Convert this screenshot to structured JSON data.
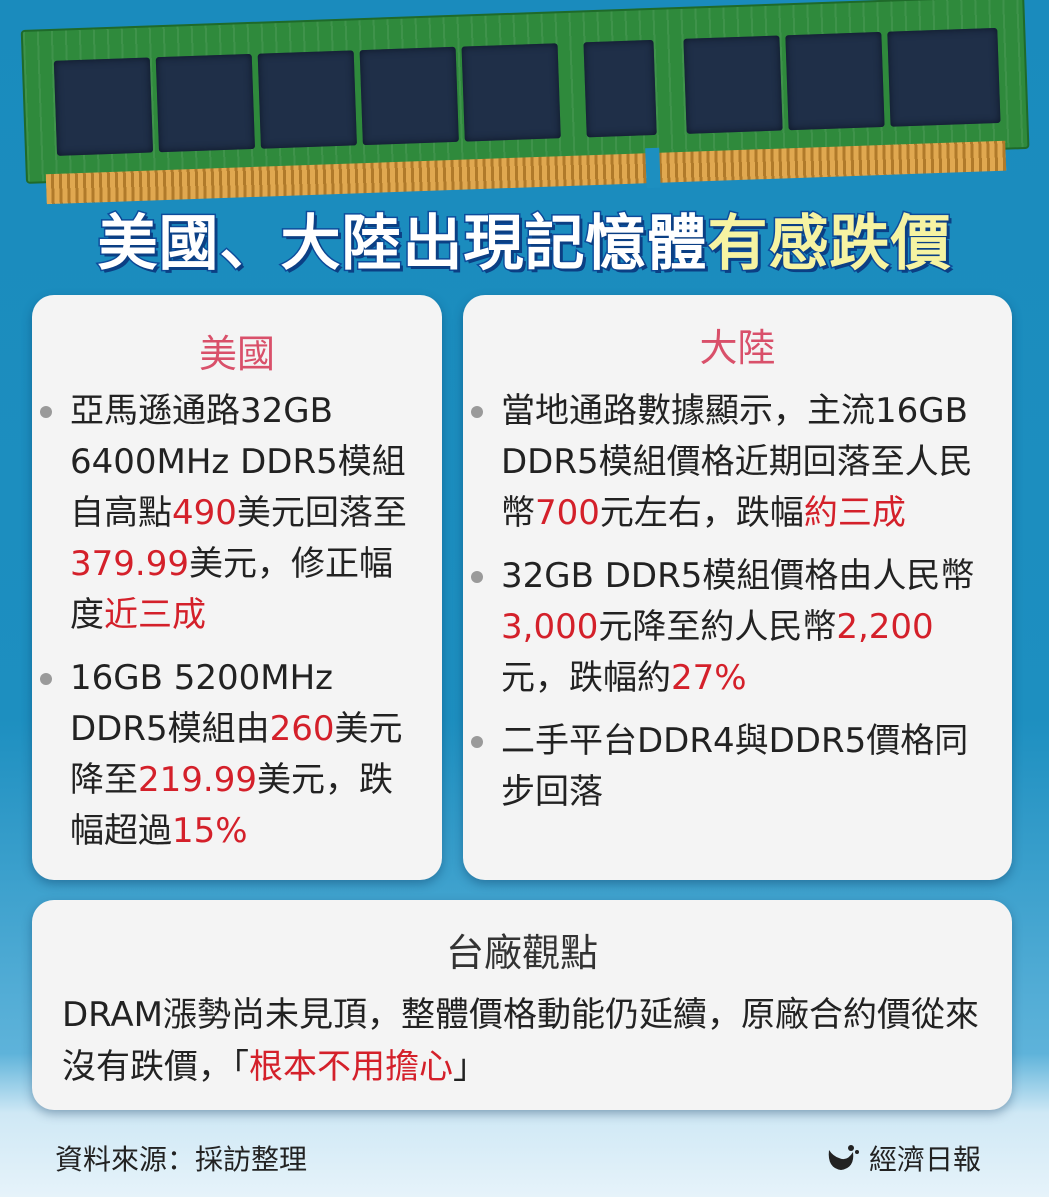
{
  "title": {
    "main": "美國、大陸出現記憶體",
    "highlight": "有感跌價"
  },
  "us": {
    "heading": "美國",
    "bullets": [
      [
        {
          "t": "亞馬遜通路32GB 6400MHz DDR5模組自高點"
        },
        {
          "t": "490",
          "hl": true
        },
        {
          "t": "美元回落至"
        },
        {
          "t": "379.99",
          "hl": true
        },
        {
          "t": "美元，修正幅度"
        },
        {
          "t": "近三成",
          "hl": true
        }
      ],
      [
        {
          "t": "16GB 5200MHz DDR5模組由"
        },
        {
          "t": "260",
          "hl": true
        },
        {
          "t": "美元降至"
        },
        {
          "t": "219.99",
          "hl": true
        },
        {
          "t": "美元，跌幅超過"
        },
        {
          "t": "15%",
          "hl": true
        }
      ]
    ]
  },
  "cn": {
    "heading": "大陸",
    "bullets": [
      [
        {
          "t": "當地通路數據顯示，主流16GB DDR5模組價格近期回落至人民幣"
        },
        {
          "t": "700",
          "hl": true
        },
        {
          "t": "元左右，跌幅"
        },
        {
          "t": "約三成",
          "hl": true
        }
      ],
      [
        {
          "t": "32GB DDR5模組價格由人民幣"
        },
        {
          "t": "3,000",
          "hl": true
        },
        {
          "t": "元降至約人民幣"
        },
        {
          "t": "2,200",
          "hl": true
        },
        {
          "t": "元，跌幅約"
        },
        {
          "t": "27%",
          "hl": true
        }
      ],
      [
        {
          "t": "二手平台DDR4與DDR5價格同步回落"
        }
      ]
    ]
  },
  "tw": {
    "heading": "台廠觀點",
    "text": [
      {
        "t": "DRAM漲勢尚未見頂，整體價格動能仍延續，原廠合約價從來沒有跌價，「"
      },
      {
        "t": "根本不用擔心",
        "hl": true
      },
      {
        "t": "」"
      }
    ]
  },
  "footer": {
    "source": "資料來源：採訪整理",
    "brand": "經濟日報",
    "brand_icon": "udn-logo-icon"
  },
  "colors": {
    "highlight": "#d4202a",
    "heading": "#d9506a",
    "background": "#1d8fc0",
    "title_yellow": "#f6f3a2"
  }
}
